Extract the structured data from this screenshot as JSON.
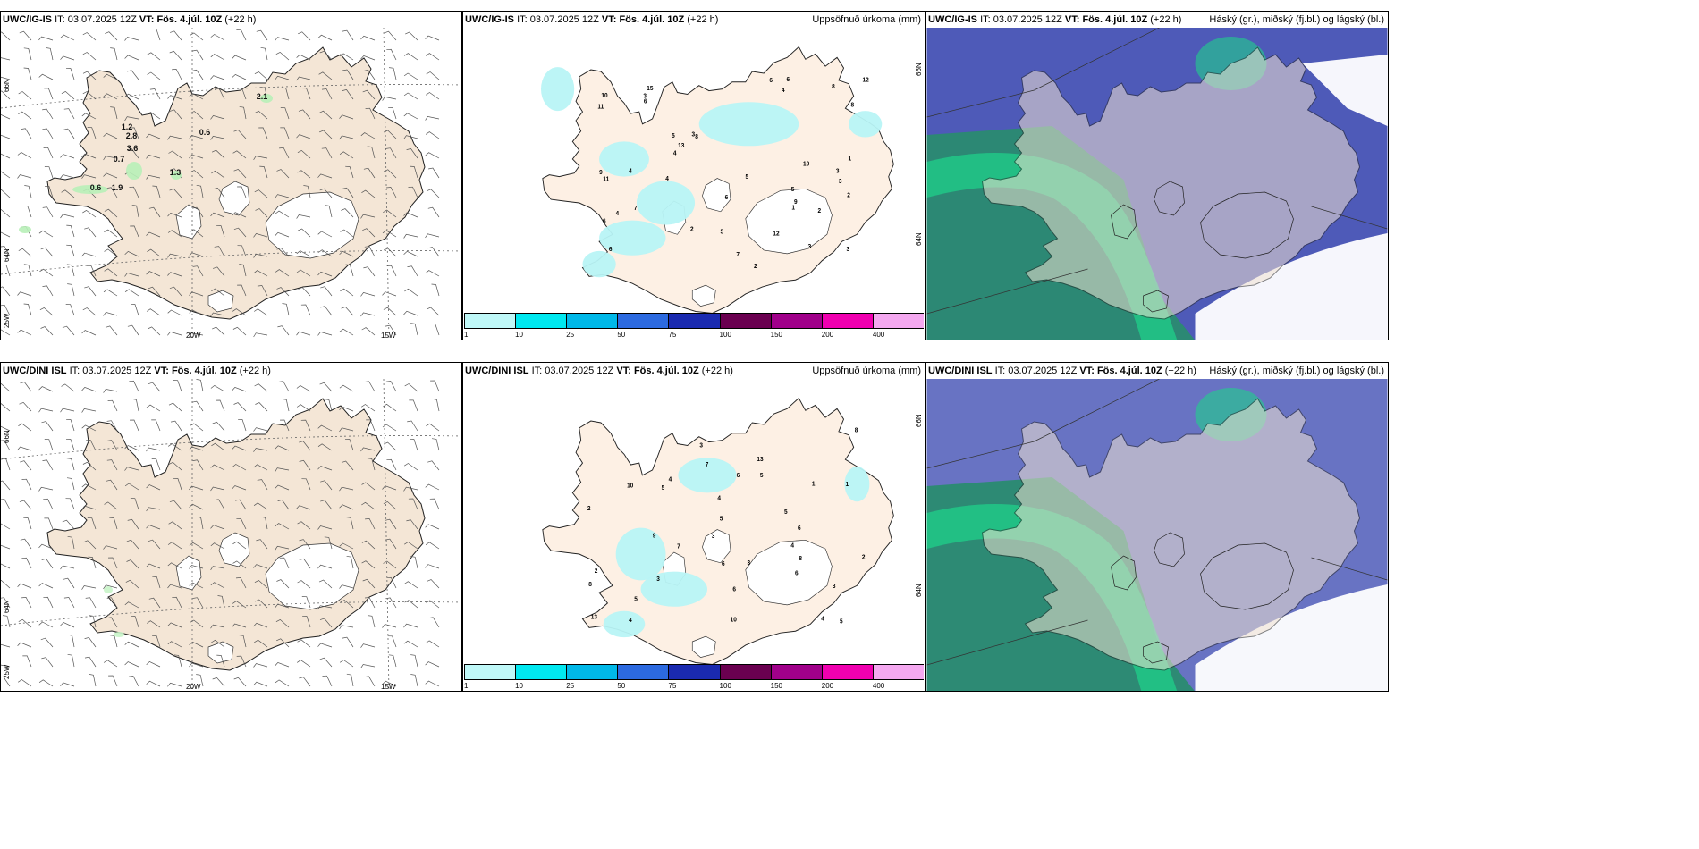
{
  "header_time": {
    "it_label": "IT:",
    "it_value": "03.07.2025 12Z",
    "vt_label": "VT:",
    "vt_value": "Fös. 4.júl. 10Z",
    "lead": "(+22 h)"
  },
  "rows": [
    {
      "model": "UWC/IG-IS"
    },
    {
      "model": "UWC/DINI ISL"
    }
  ],
  "panels": {
    "wind": {
      "lat_labels": [
        "66N",
        "64N"
      ],
      "lon_labels": [
        "25W",
        "20W",
        "15W"
      ]
    },
    "precip": {
      "title": "Uppsöfnuð úrkoma (mm)",
      "lat_labels": [
        "66N",
        "64N"
      ],
      "colorbar": {
        "ticks": [
          "1",
          "10",
          "25",
          "50",
          "75",
          "100",
          "150",
          "200",
          "400"
        ],
        "colors": [
          "#bff8f8",
          "#00e8f0",
          "#00b8e8",
          "#2c6ae0",
          "#1a2ab0",
          "#6a0050",
          "#a0008a",
          "#f000b0",
          "#f4a8f0"
        ]
      }
    },
    "clouds": {
      "title": "Háský (gr.), miðský (fj.bl.) og lágský (bl.)"
    }
  },
  "wind_top_values": [
    "2.1",
    "0.6",
    "1.2",
    "2.8",
    "3.6",
    "0.7",
    "1.3",
    "0.6",
    "1.9"
  ],
  "precip_top_values": [
    "5",
    "3",
    "6",
    "15",
    "8",
    "3",
    "6",
    "4",
    "5",
    "2",
    "11",
    "9",
    "10",
    "3",
    "2",
    "1",
    "6",
    "5",
    "3",
    "7",
    "12",
    "8",
    "4",
    "2",
    "6",
    "3",
    "9",
    "11",
    "6",
    "10",
    "7",
    "12",
    "13",
    "4",
    "3",
    "2",
    "1",
    "4",
    "5",
    "4",
    "8",
    "6"
  ],
  "precip_bottom_values": [
    "4",
    "5",
    "8",
    "10",
    "6",
    "3",
    "7",
    "5",
    "4",
    "9",
    "7",
    "10",
    "13",
    "8",
    "3",
    "6",
    "4",
    "5",
    "2",
    "1",
    "6",
    "5",
    "2",
    "4",
    "8",
    "13",
    "6",
    "3",
    "5",
    "1",
    "6",
    "2",
    "3",
    "3",
    "4",
    "5"
  ],
  "colors": {
    "land": "#f4e6d6",
    "precip_land": "#fdf0e4",
    "precip_fill": "#b8f4f6",
    "high_cloud": "#4e5ab8",
    "mid_cloud": "#2a8b70",
    "low_cloud": "#1fd08a"
  }
}
